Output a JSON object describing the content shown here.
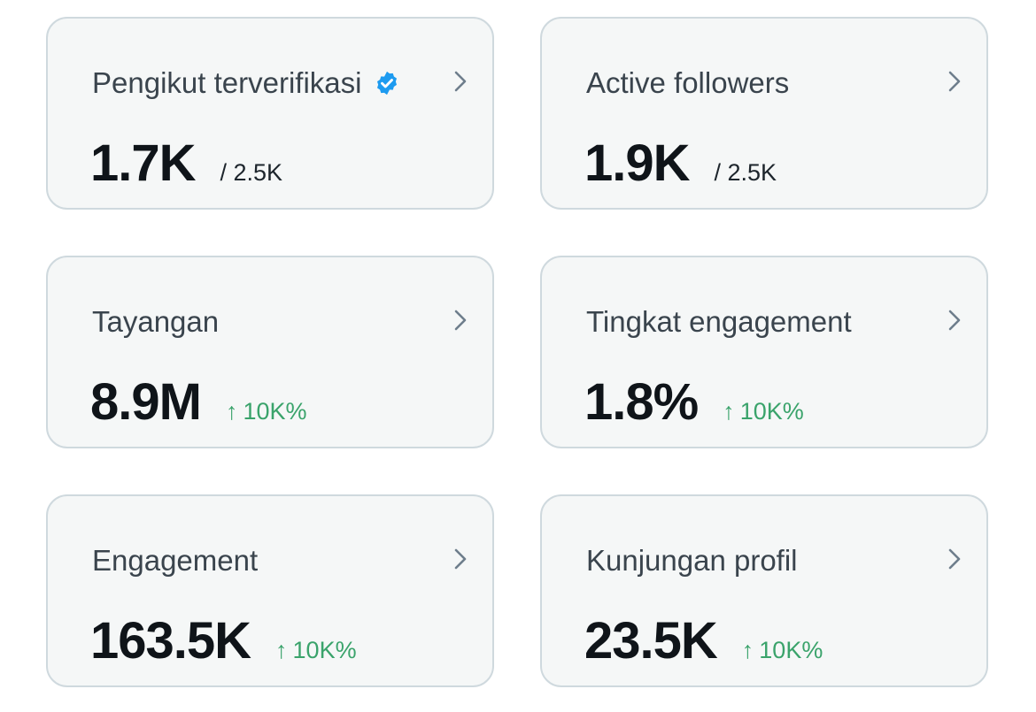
{
  "accent_color": "#1d9bf0",
  "positive_color": "#3aa36b",
  "cards": [
    {
      "title": "Pengikut terverifikasi",
      "value": "1.7K",
      "sub": "/ 2.5K",
      "icon": "verified-badge-icon"
    },
    {
      "title": "Active followers",
      "value": "1.9K",
      "sub": "/ 2.5K"
    },
    {
      "title": "Tayangan",
      "value": "8.9M",
      "delta": "10K%",
      "delta_arrow": "↑"
    },
    {
      "title": "Tingkat engagement",
      "value": "1.8%",
      "delta": "10K%",
      "delta_arrow": "↑"
    },
    {
      "title": "Engagement",
      "value": "163.5K",
      "delta": "10K%",
      "delta_arrow": "↑"
    },
    {
      "title": "Kunjungan profil",
      "value": "23.5K",
      "delta": "10K%",
      "delta_arrow": "↑"
    }
  ]
}
